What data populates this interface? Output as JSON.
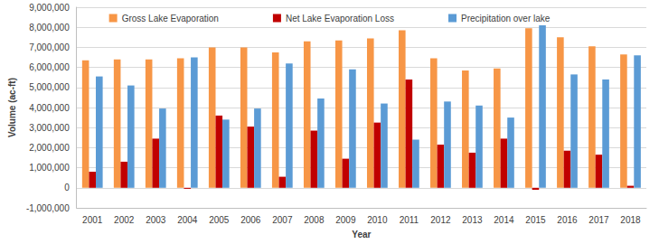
{
  "chart_data": {
    "type": "bar",
    "x_label": "Year",
    "y_label": "Volume (ac-ft)",
    "categories": [
      "2001",
      "2002",
      "2003",
      "2004",
      "2005",
      "2006",
      "2007",
      "2008",
      "2009",
      "2010",
      "2011",
      "2012",
      "2013",
      "2014",
      "2015",
      "2016",
      "2017",
      "2018"
    ],
    "series": [
      {
        "name": "Gross Lake Evaporation",
        "color": "#f79646",
        "values": [
          6350000,
          6400000,
          6400000,
          6450000,
          7000000,
          7000000,
          6750000,
          7300000,
          7350000,
          7450000,
          7850000,
          6450000,
          5850000,
          5950000,
          7950000,
          7500000,
          7050000,
          6650000
        ]
      },
      {
        "name": "Net Lake Evaporation Loss",
        "color": "#c00000",
        "values": [
          800000,
          1300000,
          2450000,
          -50000,
          3600000,
          3050000,
          550000,
          2850000,
          1450000,
          3250000,
          5400000,
          2150000,
          1750000,
          2450000,
          -100000,
          1850000,
          1650000,
          100000
        ]
      },
      {
        "name": "Precipitation over lake",
        "color": "#5b9bd5",
        "values": [
          5550000,
          5100000,
          3950000,
          6500000,
          3400000,
          3950000,
          6200000,
          4450000,
          5900000,
          4200000,
          2400000,
          4300000,
          4100000,
          3500000,
          8100000,
          5650000,
          5400000,
          6600000
        ]
      }
    ],
    "ylim": [
      -1000000,
      9000000
    ],
    "yticks": [
      {
        "value": -1000000,
        "label": "-1,000,000"
      },
      0,
      {
        "value": 1000000,
        "label": "1,000,000"
      },
      {
        "value": 2000000,
        "label": "2,000,000"
      },
      {
        "value": 3000000,
        "label": "3,000,000"
      },
      {
        "value": 4000000,
        "label": "4,000,000"
      },
      {
        "value": 5000000,
        "label": "5,000,000"
      },
      {
        "value": 6000000,
        "label": "6,000,000"
      },
      {
        "value": 7000000,
        "label": "7,000,000"
      },
      {
        "value": 8000000,
        "label": "8,000,000"
      },
      {
        "value": 9000000,
        "label": "9,000,000"
      }
    ],
    "grid": true,
    "legend": "top"
  }
}
